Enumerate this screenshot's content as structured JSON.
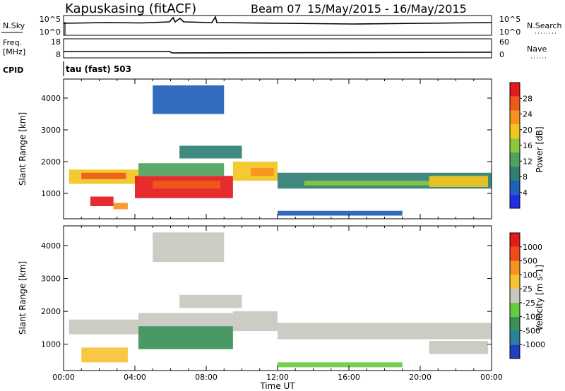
{
  "header": {
    "station": "Kapuskasing (fitACF)",
    "beam": "Beam 07",
    "dates": "15/May/2015 - 16/May/2015"
  },
  "noise_panel": {
    "left_label": "N.Sky",
    "right_label": "N.Search",
    "left_ticks": [
      "10^5",
      "10^0"
    ],
    "right_ticks": [
      "10^5",
      "10^0"
    ]
  },
  "freq_panel": {
    "left_label_1": "Freq.",
    "left_label_2": "[MHz]",
    "right_label": "Nave",
    "left_ticks": [
      "18",
      "8"
    ],
    "right_ticks": [
      "60",
      "0"
    ]
  },
  "cpid": {
    "label": "CPID",
    "value": "tau (fast) 503"
  },
  "chart_data": [
    {
      "type": "heatmap",
      "name": "power",
      "ylabel": "Slant Range [km]",
      "yticks": [
        "4000",
        "3000",
        "2000",
        "1000"
      ],
      "ylim": [
        200,
        4600
      ],
      "xlim_hours": [
        0,
        24
      ],
      "colorbar": {
        "label": "Power [dB]",
        "ticks": [
          "28",
          "24",
          "20",
          "16",
          "12",
          "8",
          "4"
        ],
        "colors": [
          "#1f2ee6",
          "#2060b8",
          "#2f7f74",
          "#4ea25e",
          "#8cc63f",
          "#f2c61f",
          "#f7931e",
          "#ef5a1a",
          "#e31a1c"
        ]
      },
      "patches": [
        {
          "x0": 0.3,
          "x1": 4.2,
          "y0": 1300,
          "y1": 1750,
          "level": 5
        },
        {
          "x0": 1.0,
          "x1": 3.5,
          "y0": 1450,
          "y1": 1650,
          "level": 7
        },
        {
          "x0": 1.5,
          "x1": 2.8,
          "y0": 600,
          "y1": 900,
          "level": 8
        },
        {
          "x0": 2.8,
          "x1": 3.6,
          "y0": 500,
          "y1": 700,
          "level": 6
        },
        {
          "x0": 4.0,
          "x1": 9.5,
          "y0": 850,
          "y1": 1550,
          "level": 8
        },
        {
          "x0": 5.0,
          "x1": 8.8,
          "y0": 1150,
          "y1": 1400,
          "level": 7
        },
        {
          "x0": 4.2,
          "x1": 9.0,
          "y0": 1550,
          "y1": 1950,
          "level": 3
        },
        {
          "x0": 9.5,
          "x1": 12.0,
          "y0": 1400,
          "y1": 2000,
          "level": 5
        },
        {
          "x0": 10.5,
          "x1": 11.8,
          "y0": 1550,
          "y1": 1800,
          "level": 6
        },
        {
          "x0": 12.0,
          "x1": 24.0,
          "y0": 1150,
          "y1": 1650,
          "level": 2
        },
        {
          "x0": 13.5,
          "x1": 20.5,
          "y0": 1250,
          "y1": 1400,
          "level": 4
        },
        {
          "x0": 20.5,
          "x1": 23.8,
          "y0": 1200,
          "y1": 1550,
          "level": 5
        },
        {
          "x0": 6.5,
          "x1": 10.0,
          "y0": 2100,
          "y1": 2500,
          "level": 2
        },
        {
          "x0": 5.0,
          "x1": 9.0,
          "y0": 3500,
          "y1": 4400,
          "level": 1
        },
        {
          "x0": 12.0,
          "x1": 19.0,
          "y0": 300,
          "y1": 450,
          "level": 1
        }
      ]
    },
    {
      "type": "heatmap",
      "name": "velocity",
      "ylabel": "Slant Range [km]",
      "yticks": [
        "4000",
        "3000",
        "2000",
        "1000"
      ],
      "ylim": [
        200,
        4600
      ],
      "xlim_hours": [
        0,
        24
      ],
      "xticks": [
        "00:00",
        "04:00",
        "08:00",
        "12:00",
        "16:00",
        "20:00",
        "00:00"
      ],
      "xlabel": "Time UT",
      "colorbar": {
        "label": "Velocity [m s-1]",
        "ticks": [
          "1000",
          "500",
          "100",
          "25",
          "-25",
          "-100",
          "-500",
          "-1000"
        ],
        "colors": [
          "#1f3fbf",
          "#2a7f9f",
          "#3c8f5a",
          "#66cc3f",
          "#c8c8c0",
          "#f7c233",
          "#f7931e",
          "#ef4a1a",
          "#e31a1c"
        ]
      },
      "patches": [
        {
          "x0": 0.3,
          "x1": 4.2,
          "y0": 1300,
          "y1": 1750,
          "level": 4
        },
        {
          "x0": 1.0,
          "x1": 3.6,
          "y0": 450,
          "y1": 900,
          "level": 5
        },
        {
          "x0": 4.2,
          "x1": 9.5,
          "y0": 850,
          "y1": 1550,
          "level": 2
        },
        {
          "x0": 4.2,
          "x1": 9.5,
          "y0": 1550,
          "y1": 1950,
          "level": 4
        },
        {
          "x0": 9.5,
          "x1": 12.0,
          "y0": 1400,
          "y1": 2000,
          "level": 4
        },
        {
          "x0": 6.5,
          "x1": 10.0,
          "y0": 2100,
          "y1": 2500,
          "level": 4
        },
        {
          "x0": 12.0,
          "x1": 24.0,
          "y0": 1150,
          "y1": 1650,
          "level": 4
        },
        {
          "x0": 20.5,
          "x1": 23.8,
          "y0": 700,
          "y1": 1100,
          "level": 4
        },
        {
          "x0": 5.0,
          "x1": 9.0,
          "y0": 3500,
          "y1": 4400,
          "level": 4
        },
        {
          "x0": 12.0,
          "x1": 19.0,
          "y0": 300,
          "y1": 450,
          "level": 3
        }
      ]
    }
  ]
}
